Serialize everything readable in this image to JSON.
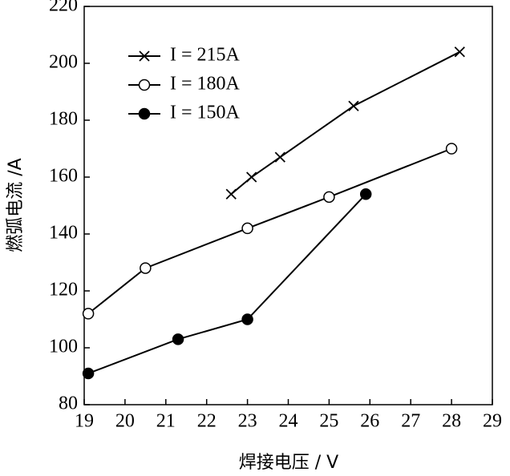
{
  "chart_data": {
    "type": "line",
    "xlabel": "焊接电压 / V",
    "ylabel": "燃弧电流 /A",
    "xlim": [
      19,
      29
    ],
    "xticks": [
      19,
      20,
      21,
      22,
      23,
      24,
      25,
      26,
      27,
      28,
      29
    ],
    "ylim": [
      80,
      220
    ],
    "yticks": [
      80,
      100,
      120,
      140,
      160,
      180,
      200,
      220
    ],
    "grid": false,
    "legend": "upper left",
    "series": [
      {
        "name": "I = 215A",
        "color": "#000000",
        "marker": "x",
        "x": [
          22.6,
          23.1,
          23.8,
          25.6,
          28.2
        ],
        "values": [
          154,
          160,
          167,
          185,
          204
        ]
      },
      {
        "name": "I = 180A",
        "color": "#000000",
        "marker": "open-circle",
        "x": [
          19.1,
          20.5,
          23.0,
          25.0,
          28.0
        ],
        "values": [
          112,
          128,
          142,
          153,
          170
        ]
      },
      {
        "name": "I = 150A",
        "color": "#000000",
        "marker": "filled-circle",
        "x": [
          19.1,
          21.3,
          23.0,
          25.9
        ],
        "values": [
          91,
          103,
          110,
          154
        ]
      }
    ]
  }
}
